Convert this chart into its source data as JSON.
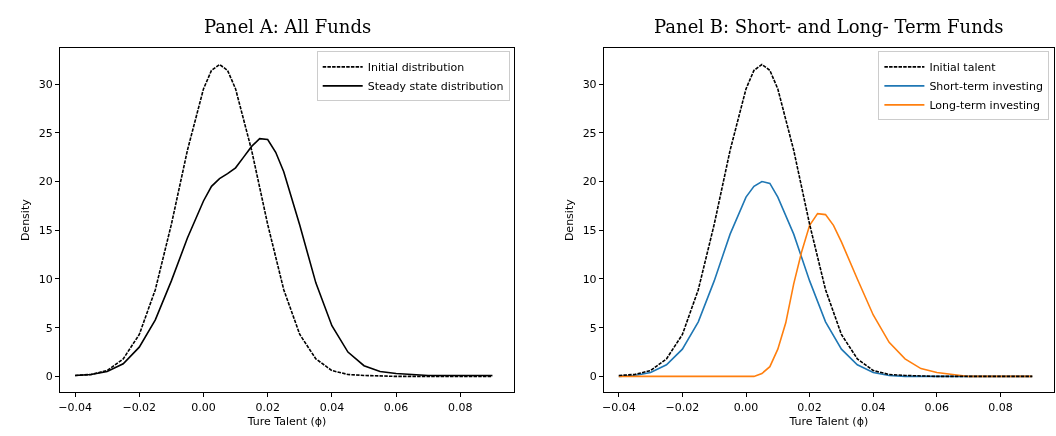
{
  "chart_data": [
    {
      "type": "line",
      "title": "Panel A: All Funds",
      "xlabel": "Ture Talent (ϕ)",
      "ylabel": "Density",
      "legend": "top right",
      "marker": "none",
      "xlim": [
        -0.0447,
        0.0968
      ],
      "ylim": [
        -1.64,
        33.7
      ],
      "xticks": [
        {
          "value": -0.04,
          "label": "−0.04"
        },
        {
          "value": -0.02,
          "label": "−0.02"
        },
        {
          "value": 0,
          "label": "0.00"
        },
        {
          "value": 0.02,
          "label": "0.02"
        },
        {
          "value": 0.04,
          "label": "0.04"
        },
        {
          "value": 0.06,
          "label": "0.06"
        },
        {
          "value": 0.08,
          "label": "0.08"
        }
      ],
      "yticks": [
        0,
        5,
        10,
        15,
        20,
        25,
        30
      ],
      "series": [
        {
          "name": "Initial distribution",
          "color": "#000000",
          "line_style": "dashed",
          "x": [
            -0.04,
            -0.035,
            -0.03,
            -0.025,
            -0.02,
            -0.015,
            -0.01,
            -0.005,
            0,
            0.0025,
            0.005,
            0.0075,
            0.01,
            0.015,
            0.02,
            0.025,
            0.03,
            0.035,
            0.04,
            0.045,
            0.05,
            0.06,
            0.09
          ],
          "values": [
            0.1,
            0.2,
            0.6,
            1.8,
            4.3,
            8.9,
            15.6,
            23.2,
            29.5,
            31.4,
            32,
            31.4,
            29.5,
            23.2,
            15.6,
            8.9,
            4.3,
            1.8,
            0.6,
            0.2,
            0.1,
            0,
            0
          ]
        },
        {
          "name": "Steady state distribution",
          "color": "#000000",
          "line_style": "solid",
          "x": [
            -0.04,
            -0.035,
            -0.03,
            -0.025,
            -0.02,
            -0.015,
            -0.01,
            -0.005,
            0,
            0.0025,
            0.005,
            0.0075,
            0.01,
            0.0125,
            0.015,
            0.0175,
            0.02,
            0.0225,
            0.025,
            0.03,
            0.035,
            0.04,
            0.045,
            0.05,
            0.055,
            0.06,
            0.07,
            0.09
          ],
          "values": [
            0.1,
            0.2,
            0.5,
            1.3,
            3.0,
            5.8,
            9.8,
            14.2,
            18.0,
            19.5,
            20.3,
            20.8,
            21.4,
            22.5,
            23.6,
            24.4,
            24.3,
            23.0,
            21.0,
            15.5,
            9.6,
            5.2,
            2.5,
            1.1,
            0.5,
            0.3,
            0.1,
            0.1
          ]
        }
      ]
    },
    {
      "type": "line",
      "title": "Panel B: Short- and Long- Term Funds",
      "xlabel": "Ture Talent (ϕ)",
      "ylabel": "Density",
      "legend": "top right",
      "marker": "none",
      "xlim": [
        -0.0447,
        0.0968
      ],
      "ylim": [
        -1.64,
        33.7
      ],
      "xticks": [
        {
          "value": -0.04,
          "label": "−0.04"
        },
        {
          "value": -0.02,
          "label": "−0.02"
        },
        {
          "value": 0,
          "label": "0.00"
        },
        {
          "value": 0.02,
          "label": "0.02"
        },
        {
          "value": 0.04,
          "label": "0.04"
        },
        {
          "value": 0.06,
          "label": "0.06"
        },
        {
          "value": 0.08,
          "label": "0.08"
        }
      ],
      "yticks": [
        0,
        5,
        10,
        15,
        20,
        25,
        30
      ],
      "series": [
        {
          "name": "Initial talent",
          "color": "#000000",
          "line_style": "dashed",
          "x": [
            -0.04,
            -0.035,
            -0.03,
            -0.025,
            -0.02,
            -0.015,
            -0.01,
            -0.005,
            0,
            0.0025,
            0.005,
            0.0075,
            0.01,
            0.015,
            0.02,
            0.025,
            0.03,
            0.035,
            0.04,
            0.045,
            0.05,
            0.06,
            0.09
          ],
          "values": [
            0.1,
            0.2,
            0.6,
            1.8,
            4.3,
            8.9,
            15.6,
            23.2,
            29.5,
            31.4,
            32,
            31.4,
            29.5,
            23.2,
            15.6,
            8.9,
            4.3,
            1.8,
            0.6,
            0.2,
            0.1,
            0,
            0
          ]
        },
        {
          "name": "Short-term investing",
          "color": "#1f77b4",
          "line_style": "solid",
          "x": [
            -0.04,
            -0.035,
            -0.03,
            -0.025,
            -0.02,
            -0.015,
            -0.01,
            -0.005,
            0,
            0.0025,
            0.005,
            0.0075,
            0.01,
            0.015,
            0.02,
            0.025,
            0.03,
            0.035,
            0.04,
            0.045,
            0.05,
            0.06,
            0.09
          ],
          "values": [
            0,
            0.1,
            0.4,
            1.2,
            2.8,
            5.6,
            9.8,
            14.6,
            18.4,
            19.5,
            20.0,
            19.8,
            18.4,
            14.6,
            9.8,
            5.6,
            2.8,
            1.2,
            0.4,
            0.1,
            0,
            0,
            0
          ]
        },
        {
          "name": "Long-term investing",
          "color": "#ff7f0e",
          "line_style": "solid",
          "x": [
            -0.04,
            0.0025,
            0.005,
            0.0075,
            0.01,
            0.0125,
            0.015,
            0.0175,
            0.02,
            0.0225,
            0.025,
            0.0275,
            0.03,
            0.035,
            0.04,
            0.045,
            0.05,
            0.055,
            0.06,
            0.065,
            0.07,
            0.09
          ],
          "values": [
            0,
            0,
            0.3,
            1.0,
            2.8,
            5.5,
            9.5,
            12.8,
            15.5,
            16.7,
            16.6,
            15.5,
            13.8,
            10.0,
            6.3,
            3.5,
            1.8,
            0.8,
            0.4,
            0.2,
            0,
            0
          ]
        }
      ]
    }
  ]
}
